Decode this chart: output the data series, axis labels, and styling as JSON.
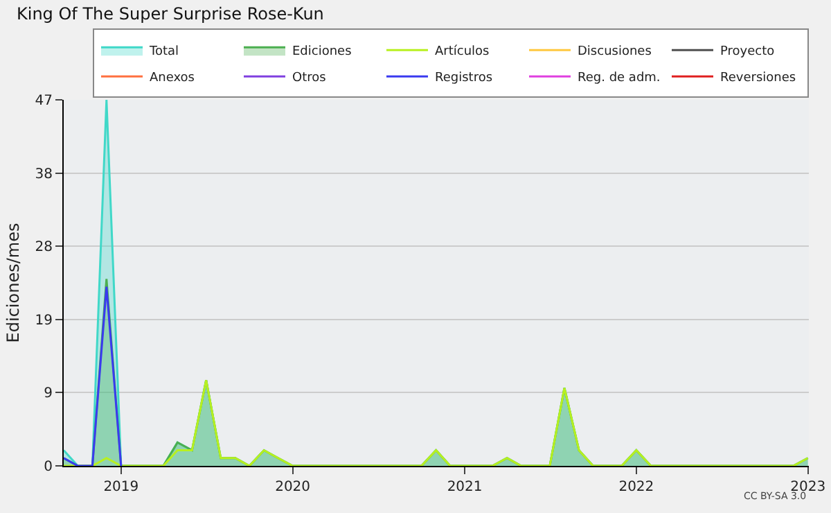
{
  "chart_data": {
    "type": "area",
    "title": "King Of The Super Surprise Rose-Kun",
    "ylabel": "Ediciones/mes",
    "x": [
      "2018-09",
      "2018-10",
      "2018-11",
      "2018-12",
      "2019-01",
      "2019-02",
      "2019-03",
      "2019-04",
      "2019-05",
      "2019-06",
      "2019-07",
      "2019-08",
      "2019-09",
      "2019-10",
      "2019-11",
      "2019-12",
      "2020-01",
      "2020-02",
      "2020-03",
      "2020-04",
      "2020-05",
      "2020-06",
      "2020-07",
      "2020-08",
      "2020-09",
      "2020-10",
      "2020-11",
      "2020-12",
      "2021-01",
      "2021-02",
      "2021-03",
      "2021-04",
      "2021-05",
      "2021-06",
      "2021-07",
      "2021-08",
      "2021-09",
      "2021-10",
      "2021-11",
      "2021-12",
      "2022-01",
      "2022-02",
      "2022-03",
      "2022-04",
      "2022-05",
      "2022-06",
      "2022-07",
      "2022-08",
      "2022-09",
      "2022-10",
      "2022-11",
      "2022-12",
      "2023-01"
    ],
    "series": [
      {
        "name": "Total",
        "color": "#40d8c8",
        "type": "area",
        "values": [
          2,
          0,
          0,
          47,
          0,
          0,
          0,
          0,
          3,
          2,
          11,
          1,
          1,
          0,
          2,
          1,
          0,
          0,
          0,
          0,
          0,
          0,
          0,
          0,
          0,
          0,
          2,
          0,
          0,
          0,
          0,
          1,
          0,
          0,
          0,
          10,
          2,
          0,
          0,
          0,
          2,
          0,
          0,
          0,
          0,
          0,
          0,
          0,
          0,
          0,
          0,
          0,
          1
        ]
      },
      {
        "name": "Ediciones",
        "color": "#4caf50",
        "type": "area",
        "values": [
          1,
          0,
          0,
          24,
          0,
          0,
          0,
          0,
          3,
          2,
          11,
          1,
          1,
          0,
          2,
          1,
          0,
          0,
          0,
          0,
          0,
          0,
          0,
          0,
          0,
          0,
          2,
          0,
          0,
          0,
          0,
          1,
          0,
          0,
          0,
          10,
          2,
          0,
          0,
          0,
          2,
          0,
          0,
          0,
          0,
          0,
          0,
          0,
          0,
          0,
          0,
          0,
          1
        ]
      },
      {
        "name": "Artículos",
        "color": "#b8f020",
        "type": "line",
        "values": [
          0,
          0,
          0,
          1,
          0,
          0,
          0,
          0,
          2,
          2,
          11,
          1,
          1,
          0,
          2,
          1,
          0,
          0,
          0,
          0,
          0,
          0,
          0,
          0,
          0,
          0,
          2,
          0,
          0,
          0,
          0,
          1,
          0,
          0,
          0,
          10,
          2,
          0,
          0,
          0,
          2,
          0,
          0,
          0,
          0,
          0,
          0,
          0,
          0,
          0,
          0,
          0,
          1
        ]
      },
      {
        "name": "Discusiones",
        "color": "#ffc840",
        "type": "line",
        "values": [
          null,
          null,
          null,
          null,
          null,
          null,
          null,
          null,
          null,
          null,
          null,
          null,
          null,
          null,
          null,
          null,
          null,
          null,
          null,
          null,
          null,
          null,
          null,
          null,
          null,
          null,
          null,
          null,
          null,
          null,
          null,
          null,
          null,
          null,
          null,
          null,
          null,
          null,
          null,
          null,
          null,
          null,
          null,
          null,
          null,
          null,
          null,
          null,
          null,
          null,
          null,
          null,
          null
        ]
      },
      {
        "name": "Proyecto",
        "color": "#505050",
        "type": "line",
        "values": [
          null,
          null,
          null,
          null,
          null,
          null,
          null,
          null,
          null,
          null,
          null,
          null,
          null,
          null,
          null,
          null,
          null,
          null,
          null,
          null,
          null,
          null,
          null,
          null,
          null,
          null,
          null,
          null,
          null,
          null,
          null,
          null,
          null,
          null,
          null,
          null,
          null,
          null,
          null,
          null,
          null,
          null,
          null,
          null,
          null,
          null,
          null,
          null,
          null,
          null,
          null,
          null,
          null
        ]
      },
      {
        "name": "Anexos",
        "color": "#ff7040",
        "type": "line",
        "values": [
          null,
          null,
          null,
          null,
          null,
          null,
          null,
          null,
          null,
          null,
          null,
          null,
          null,
          null,
          null,
          null,
          null,
          null,
          null,
          null,
          null,
          null,
          null,
          null,
          null,
          null,
          null,
          null,
          null,
          null,
          null,
          null,
          null,
          null,
          null,
          null,
          null,
          null,
          null,
          null,
          null,
          null,
          null,
          null,
          null,
          null,
          null,
          null,
          null,
          null,
          null,
          null,
          null
        ]
      },
      {
        "name": "Otros",
        "color": "#8040e0",
        "type": "line",
        "values": [
          null,
          null,
          null,
          null,
          null,
          null,
          null,
          null,
          null,
          null,
          null,
          null,
          null,
          null,
          null,
          null,
          null,
          null,
          null,
          null,
          null,
          null,
          null,
          null,
          null,
          null,
          null,
          null,
          null,
          null,
          null,
          null,
          null,
          null,
          null,
          null,
          null,
          null,
          null,
          null,
          null,
          null,
          null,
          null,
          null,
          null,
          null,
          null,
          null,
          null,
          null,
          null,
          null
        ]
      },
      {
        "name": "Registros",
        "color": "#3a3af0",
        "type": "line",
        "x": [
          "2018-09",
          "2018-10",
          "2018-11",
          "2018-12",
          "2019-01"
        ],
        "values": [
          1,
          0,
          0,
          23,
          0
        ]
      },
      {
        "name": "Reg. de adm.",
        "color": "#e040e0",
        "type": "line",
        "values": [
          null,
          null,
          null,
          null,
          null,
          null,
          null,
          null,
          null,
          null,
          null,
          null,
          null,
          null,
          null,
          null,
          null,
          null,
          null,
          null,
          null,
          null,
          null,
          null,
          null,
          null,
          null,
          null,
          null,
          null,
          null,
          null,
          null,
          null,
          null,
          null,
          null,
          null,
          null,
          null,
          null,
          null,
          null,
          null,
          null,
          null,
          null,
          null,
          null,
          null,
          null,
          null,
          null
        ]
      },
      {
        "name": "Reversiones",
        "color": "#e02020",
        "type": "line",
        "values": [
          null,
          null,
          null,
          null,
          null,
          null,
          null,
          null,
          null,
          null,
          null,
          null,
          null,
          null,
          null,
          null,
          null,
          null,
          null,
          null,
          null,
          null,
          null,
          null,
          null,
          null,
          null,
          null,
          null,
          null,
          null,
          null,
          null,
          null,
          null,
          null,
          null,
          null,
          null,
          null,
          null,
          null,
          null,
          null,
          null,
          null,
          null,
          null,
          null,
          null,
          null,
          null,
          null
        ]
      }
    ],
    "xlim": [
      "2018-09",
      "2023-01-03"
    ],
    "xticks": [
      {
        "value": "2019-01",
        "label": "2019"
      },
      {
        "value": "2020-01",
        "label": "2020"
      },
      {
        "value": "2021-01",
        "label": "2021"
      },
      {
        "value": "2022-01",
        "label": "2022"
      },
      {
        "value": "2023-01",
        "label": "2023"
      }
    ],
    "ylim": [
      0,
      47
    ],
    "yticks": [
      0,
      {
        "value": 9.4,
        "label": "9"
      },
      {
        "value": 18.8,
        "label": "19"
      },
      {
        "value": 28.2,
        "label": "28"
      },
      {
        "value": 37.6,
        "label": "38"
      },
      47
    ],
    "grid": "y",
    "legend": "top right",
    "marker": "none",
    "line_style": "solid",
    "annotations": [
      "CC BY-SA 3.0"
    ]
  }
}
